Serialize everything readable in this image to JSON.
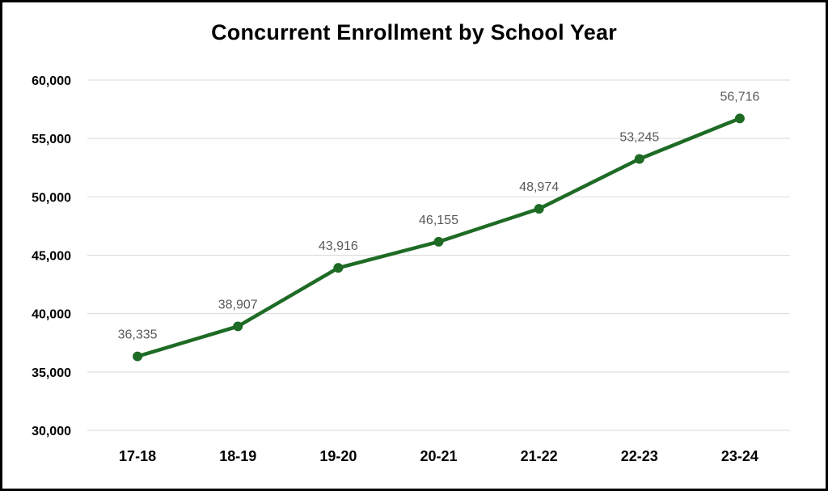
{
  "chart_data": {
    "type": "line",
    "title": "Concurrent Enrollment by School Year",
    "xlabel": "",
    "ylabel": "",
    "categories": [
      "17-18",
      "18-19",
      "19-20",
      "20-21",
      "21-22",
      "22-23",
      "23-24"
    ],
    "series": [
      {
        "name": "Concurrent Enrollment",
        "values": [
          36335,
          38907,
          43916,
          46155,
          48974,
          53245,
          56716
        ],
        "labels": [
          "36,335",
          "38,907",
          "43,916",
          "46,155",
          "48,974",
          "53,245",
          "56,716"
        ],
        "color": "#1e6b25"
      }
    ],
    "ylim": [
      30000,
      60000
    ],
    "ytick_step": 5000,
    "ytick_labels": [
      "30,000",
      "35,000",
      "40,000",
      "45,000",
      "50,000",
      "55,000",
      "60,000"
    ],
    "grid": true,
    "legend": "none"
  },
  "colors": {
    "line": "#1e6b25",
    "grid": "#d9d9d9",
    "data_label": "#595959"
  }
}
